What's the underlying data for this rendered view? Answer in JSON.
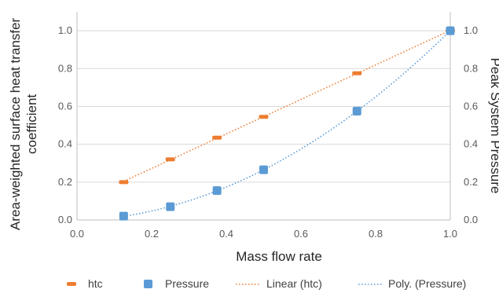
{
  "chart_data": {
    "type": "scatter",
    "xlabel": "Mass flow rate",
    "ylabel_left": "Area-weighted surface heat transfer coefficient",
    "ylabel_left_lines": [
      "Area-weighted surface heat transfer",
      "coefficient"
    ],
    "ylabel_right": "Peak System Pressure",
    "xlim": [
      0.0,
      1.0
    ],
    "ylim_left": [
      0.0,
      1.1
    ],
    "ylim_right": [
      0.0,
      1.1
    ],
    "x_ticks": [
      "0.0",
      "0.2",
      "0.4",
      "0.6",
      "0.8",
      "1.0"
    ],
    "y_ticks": [
      "0.0",
      "0.2",
      "0.4",
      "0.6",
      "0.8",
      "1.0"
    ],
    "grid_horizontal": true,
    "legend_position": "bottom",
    "series": [
      {
        "name": "htc",
        "color": "#ED7D31",
        "marker": "dash",
        "axis": "left",
        "x": [
          0.125,
          0.25,
          0.375,
          0.5,
          0.75,
          1.0
        ],
        "y": [
          0.2,
          0.32,
          0.435,
          0.545,
          0.775,
          1.0
        ]
      },
      {
        "name": "Pressure",
        "color": "#5B9BD5",
        "marker": "square",
        "axis": "right",
        "x": [
          0.125,
          0.25,
          0.375,
          0.5,
          0.75,
          1.0
        ],
        "y": [
          0.02,
          0.07,
          0.155,
          0.265,
          0.575,
          1.0
        ]
      }
    ],
    "trendlines": [
      {
        "name": "Linear (htc)",
        "type": "linear",
        "series": "htc",
        "color": "#ED7D31",
        "style": "dotted"
      },
      {
        "name": "Poly. (Pressure)",
        "type": "polynomial",
        "series": "Pressure",
        "color": "#5B9BD5",
        "style": "dotted"
      }
    ]
  }
}
